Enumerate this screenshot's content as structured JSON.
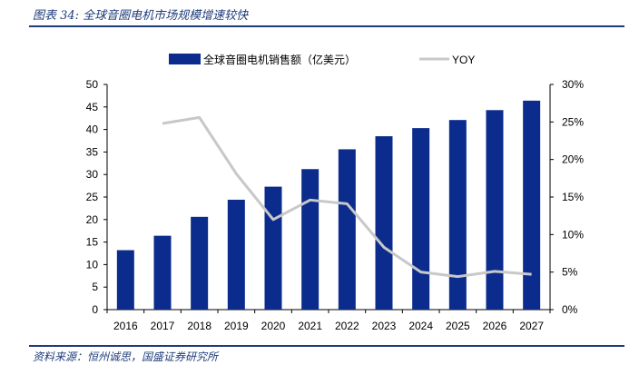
{
  "figure": {
    "title": "图表 34:  全球音圈电机市场规模增速较快",
    "source": "资料来源：恒州诚思，国盛证券研究所"
  },
  "colors": {
    "bar": "#0b2c8c",
    "line": "#c8c8c8",
    "accent": "#1f3c7a"
  },
  "chart_data": {
    "type": "bar",
    "categories": [
      "2016",
      "2017",
      "2018",
      "2019",
      "2020",
      "2021",
      "2022",
      "2023",
      "2024",
      "2025",
      "2026",
      "2027"
    ],
    "series": [
      {
        "name": "全球音圈电机销售额（亿美元）",
        "type": "bar",
        "axis": "left",
        "values": [
          13.2,
          16.4,
          20.6,
          24.4,
          27.3,
          31.2,
          35.6,
          38.5,
          40.3,
          42.1,
          44.3,
          46.4
        ]
      },
      {
        "name": "YOY",
        "type": "line",
        "axis": "right",
        "values": [
          null,
          0.248,
          0.256,
          0.181,
          0.12,
          0.146,
          0.141,
          0.083,
          0.05,
          0.044,
          0.051,
          0.047
        ]
      }
    ],
    "y_left": {
      "min": 0,
      "max": 50,
      "ticks": [
        "0",
        "5",
        "10",
        "15",
        "20",
        "25",
        "30",
        "35",
        "40",
        "45",
        "50"
      ]
    },
    "y_right": {
      "min": 0,
      "max": 0.3,
      "ticks": [
        "0%",
        "5%",
        "10%",
        "15%",
        "20%",
        "25%",
        "30%"
      ]
    },
    "legend_position": "top-center",
    "grid": false
  }
}
